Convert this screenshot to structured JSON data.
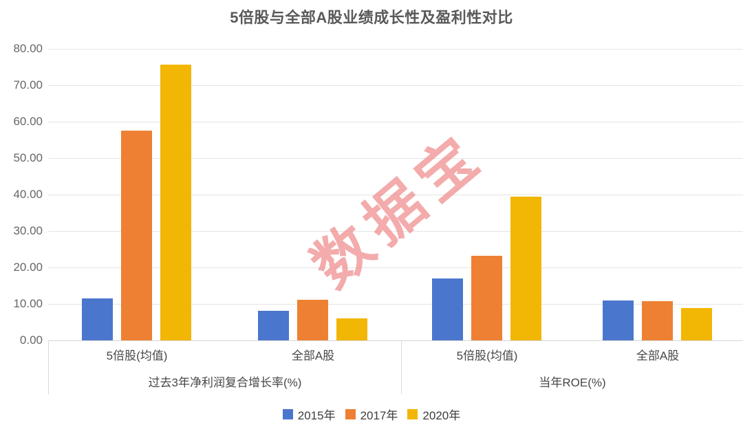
{
  "watermark": {
    "text": "数据宝",
    "color": "#ef8b8b"
  },
  "colors": {
    "grid": "#e4e4e4",
    "axis_line": "#d6d6d6",
    "label_border": "#d9d9d9",
    "title_text": "#595959",
    "tick_text": "#666666",
    "label_text": "#474747"
  },
  "chart_data": {
    "type": "bar",
    "title": "5倍股与全部A股业绩成长性及盈利性对比",
    "ylim": [
      0,
      80
    ],
    "y_tick_labels": [
      "0.00",
      "10.00",
      "20.00",
      "30.00",
      "40.00",
      "50.00",
      "60.00",
      "70.00",
      "80.00"
    ],
    "grid": true,
    "legend_position": "bottom",
    "series": [
      {
        "name": "2015年",
        "color": "#4b76cd"
      },
      {
        "name": "2017年",
        "color": "#ee8033"
      },
      {
        "name": "2020年",
        "color": "#f2b604"
      }
    ],
    "groups": [
      {
        "label": "过去3年净利润复合增长率(%)",
        "subgroups": [
          {
            "label": "5倍股(均值)",
            "values": [
              11.5,
              57.6,
              75.7
            ]
          },
          {
            "label": "全部A股",
            "values": [
              8.2,
              11.2,
              6.0
            ]
          }
        ]
      },
      {
        "label": "当年ROE(%)",
        "subgroups": [
          {
            "label": "5倍股(均值)",
            "values": [
              17.0,
              23.3,
              39.4
            ]
          },
          {
            "label": "全部A股",
            "values": [
              10.9,
              10.7,
              8.9
            ]
          }
        ]
      }
    ]
  }
}
